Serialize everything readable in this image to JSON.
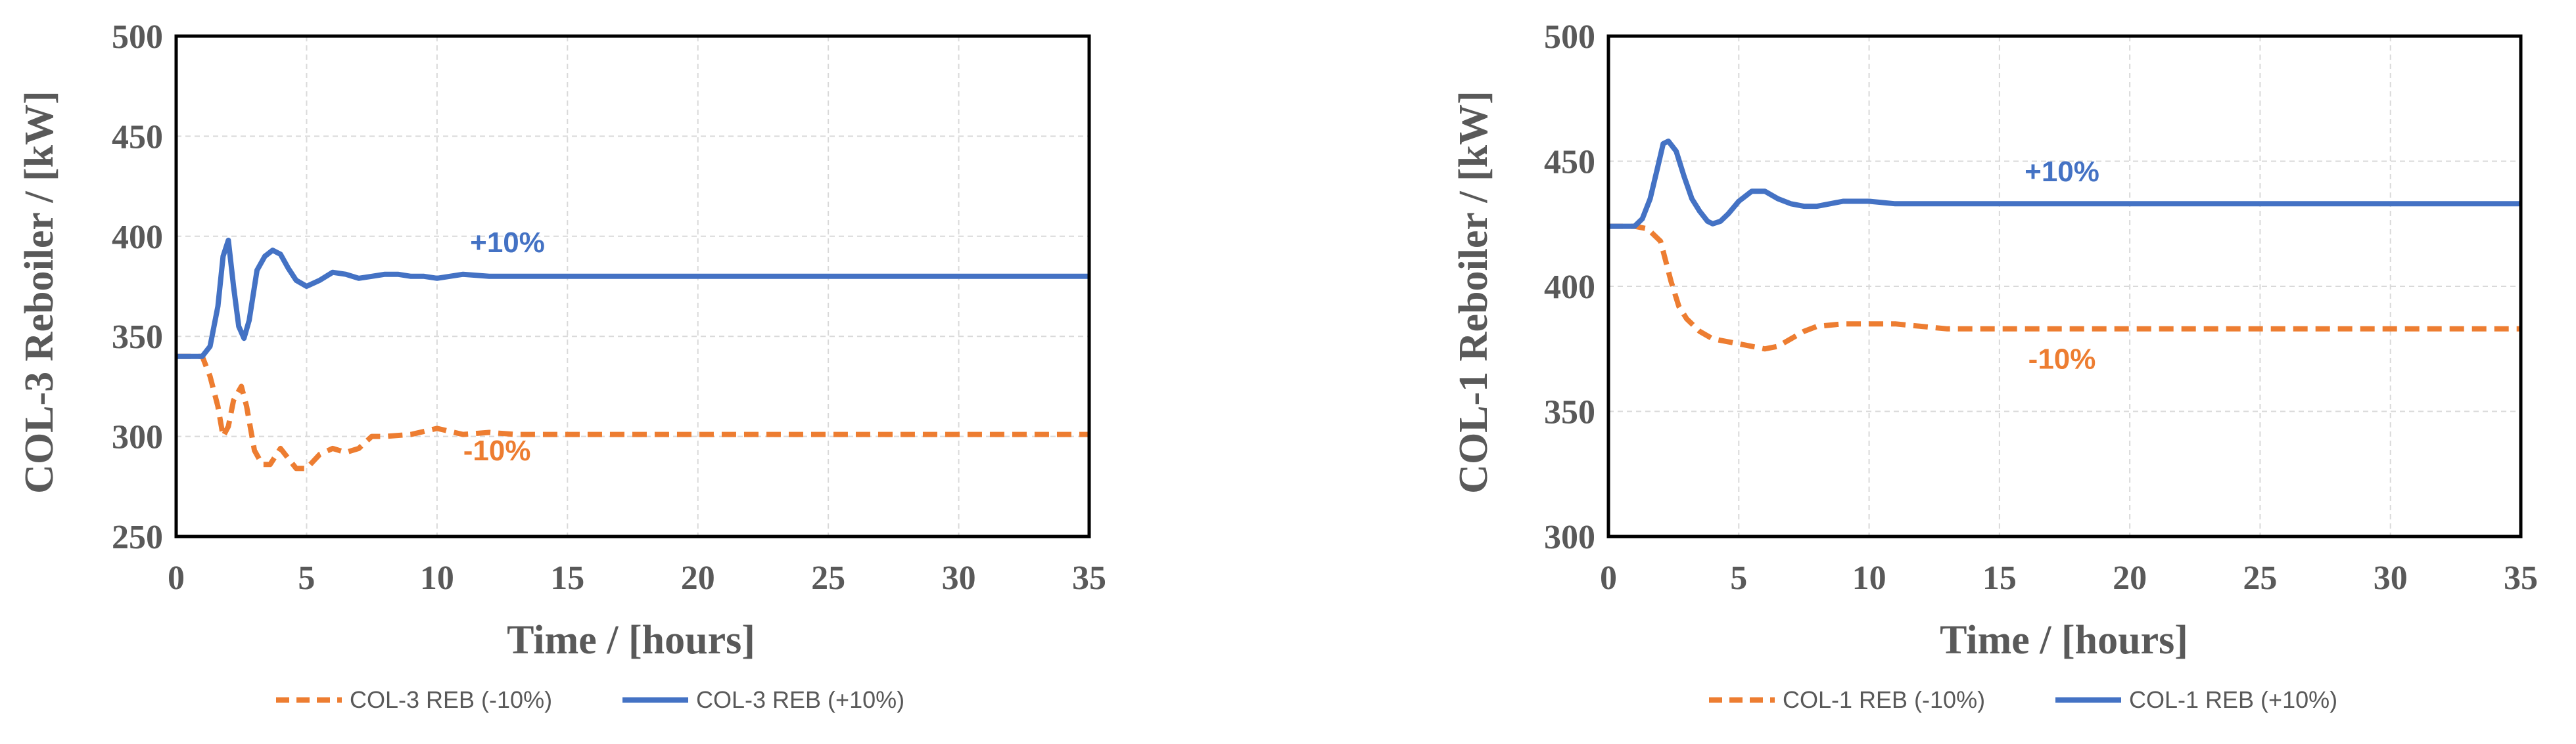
{
  "chart_data": [
    {
      "type": "line",
      "title": "",
      "xlabel": "Time / [hours]",
      "ylabel": "COL-3 Reboiler / [kW]",
      "xlim": [
        0,
        35
      ],
      "ylim": [
        250,
        500
      ],
      "xticks": [
        "0",
        "5",
        "10",
        "15",
        "20",
        "25",
        "30",
        "35"
      ],
      "yticks": [
        "250",
        "300",
        "350",
        "400",
        "450",
        "500"
      ],
      "grid": true,
      "legend_position": "bottom",
      "series": [
        {
          "name": "COL-3 REB (-10%)",
          "color": "#ED7D31",
          "dash": "dashed",
          "x": [
            0,
            1.0,
            1.3,
            1.6,
            1.8,
            2.0,
            2.2,
            2.5,
            2.7,
            3.0,
            3.3,
            3.6,
            4.0,
            4.3,
            4.6,
            5.0,
            5.5,
            6.0,
            6.5,
            7.0,
            7.5,
            8.0,
            9.0,
            10.0,
            11.0,
            12.0,
            13.0,
            15.0,
            20.0,
            25.0,
            30.0,
            35.0
          ],
          "y": [
            340,
            340,
            330,
            315,
            300,
            305,
            318,
            325,
            315,
            293,
            286,
            286,
            294,
            289,
            284,
            284,
            291,
            294,
            292,
            294,
            300,
            300,
            301,
            304,
            301,
            302,
            301,
            301,
            301,
            301,
            301,
            301
          ]
        },
        {
          "name": "COL-3 REB (+10%)",
          "color": "#4472C4",
          "dash": "solid",
          "x": [
            0,
            1.0,
            1.3,
            1.6,
            1.8,
            2.0,
            2.2,
            2.4,
            2.6,
            2.8,
            3.1,
            3.4,
            3.7,
            4.0,
            4.3,
            4.6,
            5.0,
            5.5,
            6.0,
            6.5,
            7.0,
            7.5,
            8.0,
            8.5,
            9.0,
            9.5,
            10.0,
            11.0,
            12.0,
            13.0,
            15.0,
            20.0,
            25.0,
            30.0,
            35.0
          ],
          "y": [
            340,
            340,
            345,
            365,
            390,
            398,
            375,
            355,
            349,
            358,
            383,
            390,
            393,
            391,
            384,
            378,
            375,
            378,
            382,
            381,
            379,
            380,
            381,
            381,
            380,
            380,
            379,
            381,
            380,
            380,
            380,
            380,
            380,
            380,
            380
          ]
        }
      ],
      "annotations": [
        {
          "text": "+10%",
          "x": 12.7,
          "y": 392,
          "color": "#4472C4"
        },
        {
          "text": "-10%",
          "x": 12.3,
          "y": 288,
          "color": "#ED7D31"
        }
      ]
    },
    {
      "type": "line",
      "title": "",
      "xlabel": "Time / [hours]",
      "ylabel": "COL-1 Reboiler / [kW]",
      "xlim": [
        0,
        35
      ],
      "ylim": [
        300,
        500
      ],
      "xticks": [
        "0",
        "5",
        "10",
        "15",
        "20",
        "25",
        "30",
        "35"
      ],
      "yticks": [
        "300",
        "350",
        "400",
        "450",
        "500"
      ],
      "grid": true,
      "legend_position": "bottom",
      "series": [
        {
          "name": "COL-1 REB (-10%)",
          "color": "#ED7D31",
          "dash": "dashed",
          "x": [
            0,
            1.0,
            1.5,
            2.0,
            2.4,
            2.7,
            3.0,
            3.5,
            4.0,
            4.5,
            5.0,
            5.5,
            6.0,
            6.5,
            7.0,
            7.5,
            8.0,
            9.0,
            10.0,
            11.0,
            12.0,
            13.0,
            14.0,
            15.0,
            20.0,
            25.0,
            30.0,
            35.0
          ],
          "y": [
            424,
            424,
            423,
            418,
            402,
            392,
            387,
            382,
            379,
            378,
            377,
            376,
            375,
            376,
            379,
            382,
            384,
            385,
            385,
            385,
            384,
            383,
            383,
            383,
            383,
            383,
            383,
            383
          ]
        },
        {
          "name": "COL-1 REB (+10%)",
          "color": "#4472C4",
          "dash": "solid",
          "x": [
            0,
            1.0,
            1.3,
            1.6,
            1.9,
            2.1,
            2.3,
            2.6,
            2.9,
            3.2,
            3.5,
            3.8,
            4.0,
            4.3,
            4.6,
            5.0,
            5.5,
            6.0,
            6.5,
            7.0,
            7.5,
            8.0,
            8.5,
            9.0,
            10.0,
            11.0,
            12.0,
            13.0,
            15.0,
            20.0,
            25.0,
            30.0,
            35.0
          ],
          "y": [
            424,
            424,
            427,
            435,
            448,
            457,
            458,
            454,
            444,
            435,
            430,
            426,
            425,
            426,
            429,
            434,
            438,
            438,
            435,
            433,
            432,
            432,
            433,
            434,
            434,
            433,
            433,
            433,
            433,
            433,
            433,
            433,
            433
          ]
        }
      ],
      "annotations": [
        {
          "text": "+10%",
          "x": 17.4,
          "y": 442,
          "color": "#4472C4"
        },
        {
          "text": "-10%",
          "x": 17.4,
          "y": 367,
          "color": "#ED7D31"
        }
      ]
    }
  ]
}
